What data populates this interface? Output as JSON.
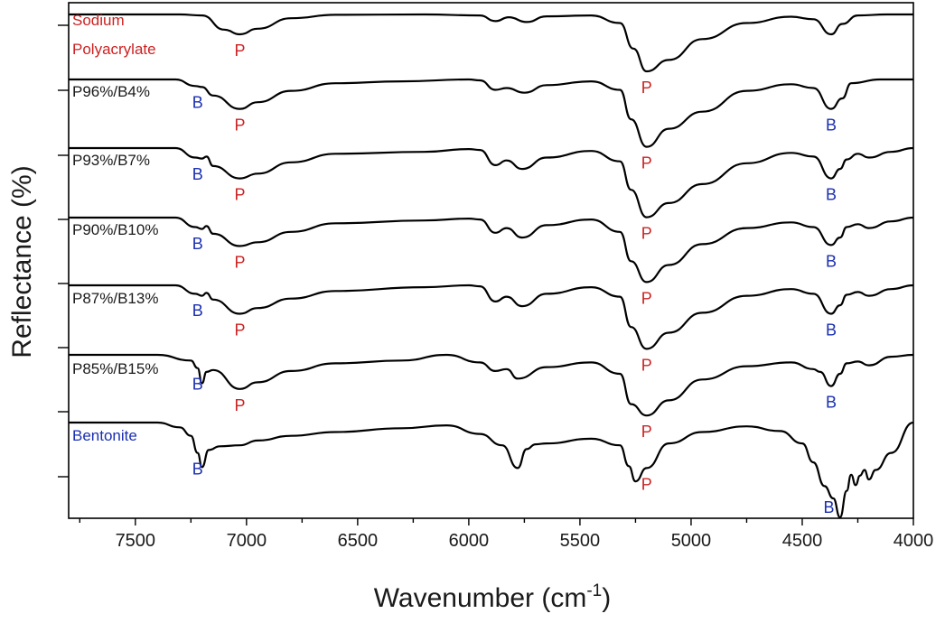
{
  "chart_data": {
    "type": "line",
    "xlabel": "Wavenumber (cm",
    "xlabel_superscript": "-1",
    "xlabel_close": ")",
    "ylabel": "Reflectance (%)",
    "xlim": [
      7800,
      4000
    ],
    "x_reversed": true,
    "y_ticks_labeled": false,
    "x_ticks": [
      7500,
      7000,
      6500,
      6000,
      5500,
      5000,
      4500,
      4000
    ],
    "x_tick_labels": [
      "7500",
      "7000",
      "6500",
      "6000",
      "5500",
      "5000",
      "4500",
      "4000"
    ],
    "colors": {
      "line": "#000000",
      "sample_black": "#1a1a1a",
      "polyacrylate": "#cc2222",
      "bentonite": "#1a2fb0"
    },
    "series": [
      {
        "name": "Sodium Polyacrylate",
        "label_lines": [
          "Sodium",
          "Polyacrylate"
        ],
        "label_color": "polyacrylate",
        "peaks": [
          {
            "text": "P",
            "x": 7030,
            "color": "polyacrylate"
          },
          {
            "text": "P",
            "x": 5200,
            "color": "polyacrylate"
          }
        ]
      },
      {
        "name": "P96%/B4%",
        "label_lines": [
          "P96%/B4%"
        ],
        "label_color": "sample_black",
        "peaks": [
          {
            "text": "B",
            "x": 7220,
            "color": "bentonite"
          },
          {
            "text": "P",
            "x": 7030,
            "color": "polyacrylate"
          },
          {
            "text": "P",
            "x": 5200,
            "color": "polyacrylate"
          },
          {
            "text": "B",
            "x": 4370,
            "color": "bentonite"
          }
        ]
      },
      {
        "name": "P93%/B7%",
        "label_lines": [
          "P93%/B7%"
        ],
        "label_color": "sample_black",
        "peaks": [
          {
            "text": "B",
            "x": 7220,
            "color": "bentonite"
          },
          {
            "text": "P",
            "x": 7030,
            "color": "polyacrylate"
          },
          {
            "text": "P",
            "x": 5200,
            "color": "polyacrylate"
          },
          {
            "text": "B",
            "x": 4370,
            "color": "bentonite"
          }
        ]
      },
      {
        "name": "P90%/B10%",
        "label_lines": [
          "P90%/B10%"
        ],
        "label_color": "sample_black",
        "peaks": [
          {
            "text": "B",
            "x": 7220,
            "color": "bentonite"
          },
          {
            "text": "P",
            "x": 7030,
            "color": "polyacrylate"
          },
          {
            "text": "P",
            "x": 5200,
            "color": "polyacrylate"
          },
          {
            "text": "B",
            "x": 4370,
            "color": "bentonite"
          }
        ]
      },
      {
        "name": "P87%/B13%",
        "label_lines": [
          "P87%/B13%"
        ],
        "label_color": "sample_black",
        "peaks": [
          {
            "text": "B",
            "x": 7220,
            "color": "bentonite"
          },
          {
            "text": "P",
            "x": 7030,
            "color": "polyacrylate"
          },
          {
            "text": "P",
            "x": 5200,
            "color": "polyacrylate"
          },
          {
            "text": "B",
            "x": 4370,
            "color": "bentonite"
          }
        ]
      },
      {
        "name": "P85%/B15%",
        "label_lines": [
          "P85%/B15%"
        ],
        "label_color": "sample_black",
        "peaks": [
          {
            "text": "B",
            "x": 7220,
            "color": "bentonite"
          },
          {
            "text": "P",
            "x": 7030,
            "color": "polyacrylate"
          },
          {
            "text": "P",
            "x": 5200,
            "color": "polyacrylate"
          },
          {
            "text": "B",
            "x": 4370,
            "color": "bentonite"
          }
        ]
      },
      {
        "name": "Bentonite",
        "label_lines": [
          "Bentonite"
        ],
        "label_color": "bentonite",
        "peaks": [
          {
            "text": "B",
            "x": 7220,
            "color": "bentonite"
          },
          {
            "text": "P",
            "x": 5200,
            "color": "polyacrylate"
          },
          {
            "text": "B",
            "x": 4380,
            "color": "bentonite"
          }
        ]
      }
    ],
    "spectra": [
      {
        "name": "Sodium Polyacrylate",
        "points": [
          [
            7800,
            0.0
          ],
          [
            7300,
            0.0
          ],
          [
            7200,
            0.05
          ],
          [
            7100,
            0.8
          ],
          [
            7030,
            1.05
          ],
          [
            6950,
            0.75
          ],
          [
            6800,
            0.2
          ],
          [
            6600,
            0.02
          ],
          [
            6200,
            0.0
          ],
          [
            5950,
            0.05
          ],
          [
            5880,
            0.35
          ],
          [
            5820,
            0.15
          ],
          [
            5740,
            0.4
          ],
          [
            5650,
            0.1
          ],
          [
            5450,
            0.05
          ],
          [
            5320,
            0.45
          ],
          [
            5260,
            1.8
          ],
          [
            5200,
            3.0
          ],
          [
            5100,
            2.4
          ],
          [
            4950,
            1.3
          ],
          [
            4750,
            0.45
          ],
          [
            4550,
            0.12
          ],
          [
            4450,
            0.25
          ],
          [
            4370,
            1.05
          ],
          [
            4320,
            0.5
          ],
          [
            4250,
            0.05
          ],
          [
            4120,
            0.0
          ],
          [
            4000,
            0.0
          ]
        ]
      },
      {
        "name": "P96%/B4%",
        "points": [
          [
            7800,
            0.0
          ],
          [
            7320,
            0.0
          ],
          [
            7230,
            0.35
          ],
          [
            7200,
            0.4
          ],
          [
            7150,
            0.85
          ],
          [
            7030,
            1.55
          ],
          [
            6950,
            1.2
          ],
          [
            6800,
            0.6
          ],
          [
            6600,
            0.2
          ],
          [
            6300,
            0.1
          ],
          [
            6000,
            0.0
          ],
          [
            5950,
            0.05
          ],
          [
            5880,
            0.55
          ],
          [
            5830,
            0.45
          ],
          [
            5750,
            0.7
          ],
          [
            5650,
            0.3
          ],
          [
            5450,
            0.1
          ],
          [
            5320,
            0.55
          ],
          [
            5270,
            2.1
          ],
          [
            5200,
            3.55
          ],
          [
            5100,
            2.6
          ],
          [
            4950,
            1.7
          ],
          [
            4750,
            0.6
          ],
          [
            4550,
            0.25
          ],
          [
            4450,
            0.45
          ],
          [
            4370,
            1.55
          ],
          [
            4320,
            1.0
          ],
          [
            4280,
            0.2
          ],
          [
            4150,
            0.0
          ],
          [
            4000,
            0.0
          ]
        ]
      },
      {
        "name": "P93%/B7%",
        "points": [
          [
            7800,
            0.0
          ],
          [
            7320,
            0.0
          ],
          [
            7230,
            0.5
          ],
          [
            7200,
            0.55
          ],
          [
            7180,
            0.45
          ],
          [
            7150,
            0.95
          ],
          [
            7030,
            1.6
          ],
          [
            6950,
            1.35
          ],
          [
            6800,
            0.75
          ],
          [
            6600,
            0.3
          ],
          [
            6200,
            0.2
          ],
          [
            6000,
            0.05
          ],
          [
            5950,
            0.1
          ],
          [
            5880,
            0.9
          ],
          [
            5830,
            0.65
          ],
          [
            5760,
            1.1
          ],
          [
            5650,
            0.5
          ],
          [
            5450,
            0.15
          ],
          [
            5320,
            0.7
          ],
          [
            5270,
            2.2
          ],
          [
            5200,
            3.65
          ],
          [
            5100,
            2.9
          ],
          [
            4950,
            1.9
          ],
          [
            4750,
            0.8
          ],
          [
            4550,
            0.25
          ],
          [
            4450,
            0.45
          ],
          [
            4370,
            1.6
          ],
          [
            4330,
            1.1
          ],
          [
            4300,
            0.6
          ],
          [
            4250,
            0.3
          ],
          [
            4200,
            0.5
          ],
          [
            4100,
            0.2
          ],
          [
            4000,
            0.0
          ]
        ]
      },
      {
        "name": "P90%/B10%",
        "points": [
          [
            7800,
            0.0
          ],
          [
            7320,
            0.0
          ],
          [
            7230,
            0.5
          ],
          [
            7200,
            0.6
          ],
          [
            7180,
            0.45
          ],
          [
            7150,
            0.85
          ],
          [
            7030,
            1.5
          ],
          [
            6950,
            1.3
          ],
          [
            6800,
            0.75
          ],
          [
            6600,
            0.3
          ],
          [
            6200,
            0.15
          ],
          [
            6000,
            0.05
          ],
          [
            5950,
            0.1
          ],
          [
            5880,
            0.8
          ],
          [
            5830,
            0.55
          ],
          [
            5760,
            1.05
          ],
          [
            5650,
            0.4
          ],
          [
            5450,
            0.1
          ],
          [
            5320,
            0.75
          ],
          [
            5270,
            2.3
          ],
          [
            5200,
            3.4
          ],
          [
            5100,
            2.5
          ],
          [
            4950,
            1.4
          ],
          [
            4750,
            0.55
          ],
          [
            4550,
            0.25
          ],
          [
            4450,
            0.5
          ],
          [
            4370,
            1.45
          ],
          [
            4330,
            1.05
          ],
          [
            4300,
            0.5
          ],
          [
            4250,
            0.35
          ],
          [
            4200,
            0.55
          ],
          [
            4100,
            0.2
          ],
          [
            4000,
            0.0
          ]
        ]
      },
      {
        "name": "P87%/B13%",
        "points": [
          [
            7800,
            0.0
          ],
          [
            7320,
            0.0
          ],
          [
            7230,
            0.45
          ],
          [
            7200,
            0.55
          ],
          [
            7180,
            0.4
          ],
          [
            7150,
            0.75
          ],
          [
            7030,
            1.5
          ],
          [
            6950,
            1.2
          ],
          [
            6800,
            0.7
          ],
          [
            6600,
            0.3
          ],
          [
            6200,
            0.1
          ],
          [
            6000,
            0.0
          ],
          [
            5950,
            0.05
          ],
          [
            5880,
            0.85
          ],
          [
            5830,
            0.6
          ],
          [
            5760,
            1.1
          ],
          [
            5650,
            0.45
          ],
          [
            5450,
            0.1
          ],
          [
            5320,
            0.6
          ],
          [
            5270,
            2.2
          ],
          [
            5200,
            3.35
          ],
          [
            5100,
            2.5
          ],
          [
            4950,
            1.45
          ],
          [
            4750,
            0.55
          ],
          [
            4550,
            0.2
          ],
          [
            4450,
            0.45
          ],
          [
            4370,
            1.5
          ],
          [
            4330,
            1.05
          ],
          [
            4300,
            0.5
          ],
          [
            4250,
            0.35
          ],
          [
            4200,
            0.55
          ],
          [
            4100,
            0.2
          ],
          [
            4000,
            0.0
          ]
        ]
      },
      {
        "name": "P85%/B15%",
        "points": [
          [
            7800,
            0.0
          ],
          [
            7400,
            0.0
          ],
          [
            7250,
            0.3
          ],
          [
            7220,
            0.7
          ],
          [
            7200,
            1.5
          ],
          [
            7180,
            0.9
          ],
          [
            7150,
            0.8
          ],
          [
            7030,
            1.8
          ],
          [
            6950,
            1.45
          ],
          [
            6800,
            0.85
          ],
          [
            6600,
            0.45
          ],
          [
            6300,
            0.3
          ],
          [
            6100,
            0.0
          ],
          [
            5950,
            0.4
          ],
          [
            5880,
            0.85
          ],
          [
            5830,
            0.75
          ],
          [
            5780,
            1.25
          ],
          [
            5650,
            0.65
          ],
          [
            5450,
            0.4
          ],
          [
            5320,
            1.0
          ],
          [
            5270,
            2.6
          ],
          [
            5200,
            3.2
          ],
          [
            5100,
            2.4
          ],
          [
            4950,
            1.3
          ],
          [
            4750,
            0.6
          ],
          [
            4550,
            0.4
          ],
          [
            4450,
            0.75
          ],
          [
            4420,
            0.9
          ],
          [
            4370,
            1.65
          ],
          [
            4330,
            1.0
          ],
          [
            4300,
            0.45
          ],
          [
            4250,
            0.35
          ],
          [
            4200,
            0.55
          ],
          [
            4100,
            0.1
          ],
          [
            4000,
            0.0
          ]
        ]
      },
      {
        "name": "Bentonite",
        "points": [
          [
            7800,
            0.0
          ],
          [
            7400,
            0.0
          ],
          [
            7300,
            0.25
          ],
          [
            7250,
            0.7
          ],
          [
            7220,
            1.6
          ],
          [
            7200,
            2.35
          ],
          [
            7170,
            1.45
          ],
          [
            7120,
            1.25
          ],
          [
            7030,
            1.2
          ],
          [
            6950,
            0.95
          ],
          [
            6800,
            0.7
          ],
          [
            6600,
            0.5
          ],
          [
            6300,
            0.3
          ],
          [
            6100,
            0.15
          ],
          [
            5950,
            0.6
          ],
          [
            5850,
            1.2
          ],
          [
            5780,
            2.4
          ],
          [
            5740,
            1.4
          ],
          [
            5700,
            1.15
          ],
          [
            5650,
            1.1
          ],
          [
            5450,
            0.85
          ],
          [
            5320,
            1.2
          ],
          [
            5280,
            2.3
          ],
          [
            5250,
            3.1
          ],
          [
            5200,
            2.4
          ],
          [
            5100,
            1.1
          ],
          [
            4950,
            0.5
          ],
          [
            4750,
            0.2
          ],
          [
            4600,
            0.45
          ],
          [
            4500,
            1.1
          ],
          [
            4450,
            2.1
          ],
          [
            4400,
            3.35
          ],
          [
            4360,
            4.0
          ],
          [
            4330,
            5.0
          ],
          [
            4300,
            3.6
          ],
          [
            4280,
            2.75
          ],
          [
            4260,
            3.3
          ],
          [
            4240,
            2.8
          ],
          [
            4220,
            2.5
          ],
          [
            4200,
            3.0
          ],
          [
            4170,
            2.5
          ],
          [
            4100,
            1.6
          ],
          [
            4000,
            0.0
          ]
        ]
      }
    ]
  }
}
